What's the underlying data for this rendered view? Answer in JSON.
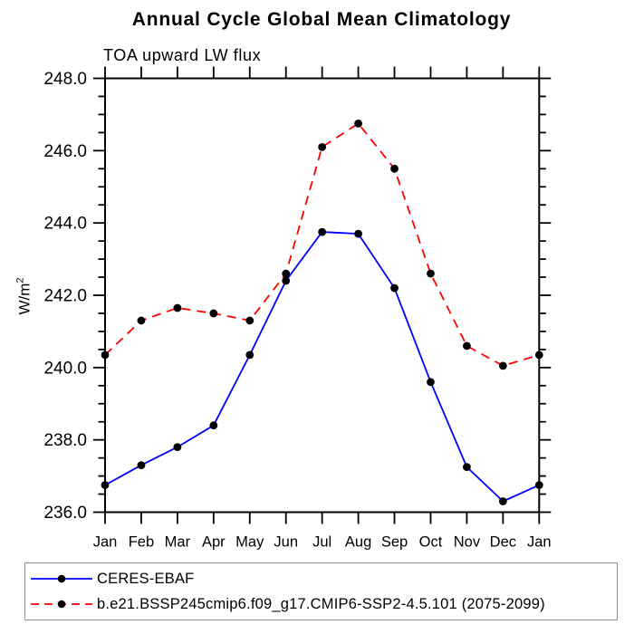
{
  "title": "Annual Cycle Global Mean Climatology",
  "subtitle": "TOA upward LW flux",
  "y_axis_label": {
    "main": "W/m",
    "sup": "2"
  },
  "chart_data": {
    "type": "line",
    "title": "Annual Cycle Global Mean Climatology",
    "subtitle": "TOA upward LW flux",
    "ylabel": "W/m^2",
    "ylim": [
      236.0,
      248.0
    ],
    "y_major_step": 2.0,
    "y_minor_step": 0.5,
    "y_tick_decimals": 1,
    "grid": false,
    "legend_position": "bottom",
    "categories": [
      "Jan",
      "Feb",
      "Mar",
      "Apr",
      "May",
      "Jun",
      "Jul",
      "Aug",
      "Sep",
      "Oct",
      "Nov",
      "Dec",
      "Jan"
    ],
    "series": [
      {
        "name": "CERES-EBAF",
        "color": "#0000ff",
        "line_style": "solid",
        "marker": "filled-circle",
        "marker_color": "#000000",
        "values": [
          236.75,
          237.3,
          237.8,
          238.4,
          240.35,
          242.4,
          243.75,
          243.7,
          242.2,
          239.6,
          237.25,
          236.3,
          236.75
        ]
      },
      {
        "name": "b.e21.BSSP245cmip6.f09_g17.CMIP6-SSP2-4.5.101 (2075-2099)",
        "color": "#ff0000",
        "line_style": "dashed",
        "marker": "filled-circle",
        "marker_color": "#000000",
        "values": [
          240.35,
          241.3,
          241.65,
          241.5,
          241.3,
          242.6,
          246.1,
          246.75,
          245.5,
          242.6,
          240.6,
          240.05,
          240.35
        ]
      }
    ]
  }
}
